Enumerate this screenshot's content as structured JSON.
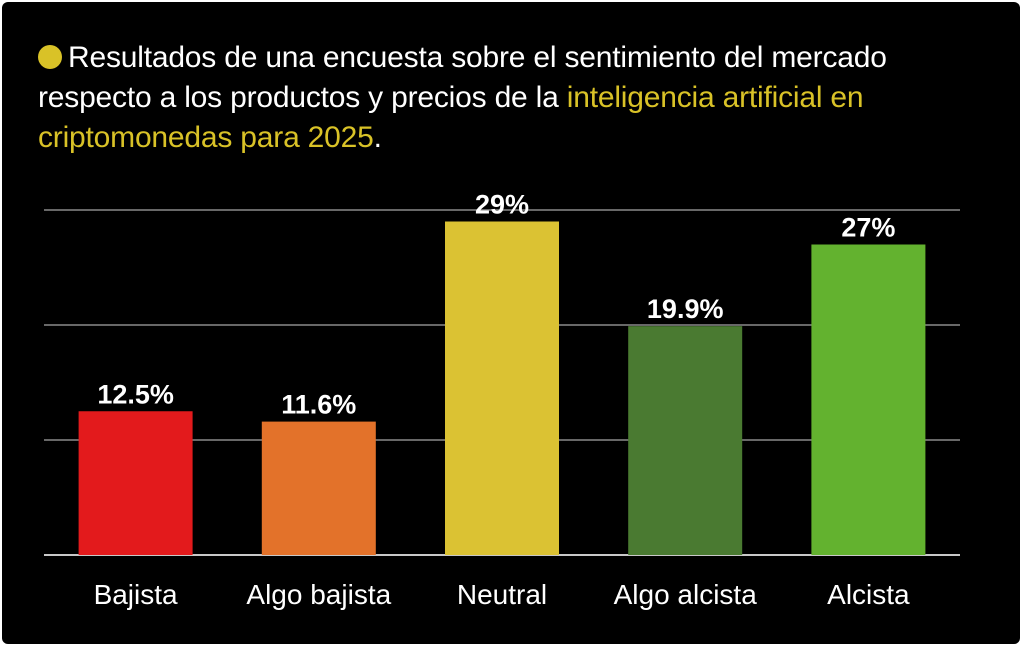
{
  "title": {
    "part1": "Resultados de una encuesta sobre el sentimiento del mercado respecto a los productos y precios de la ",
    "highlight": "inteligencia artificial en criptomonedas para 2025",
    "end": "."
  },
  "colors": {
    "background": "#000000",
    "accent": "#d9c227",
    "gridline": "#8a8a8a"
  },
  "chart_data": {
    "type": "bar",
    "title": "Resultados de una encuesta sobre el sentimiento del mercado respecto a los productos y precios de la inteligencia artificial en criptomonedas para 2025.",
    "xlabel": "",
    "ylabel": "",
    "categories": [
      "Bajista",
      "Algo bajista",
      "Neutral",
      "Algo alcista",
      "Alcista"
    ],
    "values": [
      12.5,
      11.6,
      29,
      19.9,
      27
    ],
    "value_labels": [
      "12.5%",
      "11.6%",
      "29%",
      "19.9%",
      "27%"
    ],
    "bar_colors": [
      "#e31a1c",
      "#e3722a",
      "#dbc233",
      "#4a7a31",
      "#63b22f"
    ],
    "ylim": [
      0,
      30
    ],
    "gridlines": [
      0,
      10,
      20,
      30
    ],
    "grid": true,
    "legend": "none"
  }
}
